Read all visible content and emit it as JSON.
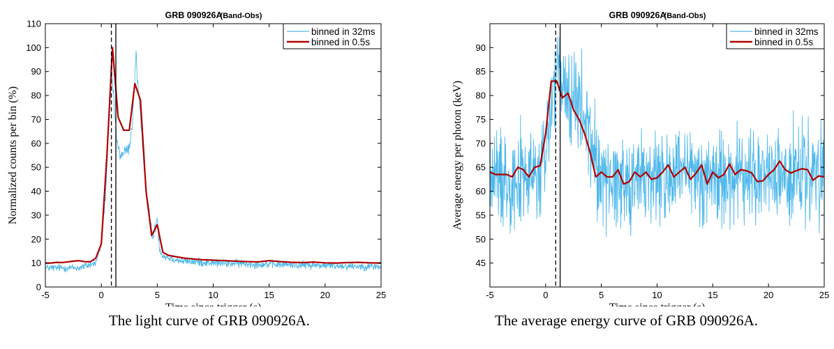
{
  "chart_data": [
    {
      "type": "line",
      "title": "GRB 090926A",
      "subtitle": "(Band-Obs)",
      "xlabel": "Time since trigger (s)",
      "ylabel": "Normalized counts per bin (%)",
      "xlim": [
        -5,
        25
      ],
      "ylim": [
        0,
        110
      ],
      "xticks": [
        -5,
        0,
        5,
        10,
        15,
        20,
        25
      ],
      "yticks": [
        0,
        10,
        20,
        30,
        40,
        50,
        60,
        70,
        80,
        90,
        100,
        110
      ],
      "grid": false,
      "legend_position": "top-right",
      "vlines": [
        {
          "x": 0.9,
          "style": "dashed"
        },
        {
          "x": 1.3,
          "style": "solid"
        }
      ],
      "series": [
        {
          "name": "binned in 32ms",
          "color": "#4fb8ea",
          "noise_amplitude": 1.5,
          "x": [
            -5,
            -2,
            -0.5,
            0.0,
            0.4,
            0.7,
            0.9,
            1.0,
            1.2,
            1.4,
            1.7,
            2.0,
            2.5,
            2.8,
            3.0,
            3.1,
            3.2,
            3.5,
            4.0,
            4.3,
            4.6,
            5.0,
            5.2,
            5.5,
            7,
            10,
            15,
            20,
            25
          ],
          "values": [
            8,
            8,
            10,
            18,
            40,
            72,
            96,
            85,
            72,
            60,
            55,
            56,
            58,
            70,
            88,
            100,
            88,
            70,
            42,
            30,
            20,
            29,
            16,
            13,
            11,
            10,
            9.5,
            9,
            8.5
          ]
        },
        {
          "name": "binned in 0.5s",
          "color": "#b00000",
          "x": [
            -5,
            -4.5,
            -4,
            -3.5,
            -3,
            -2.5,
            -2,
            -1.5,
            -1,
            -0.5,
            0,
            0.5,
            1.0,
            1.5,
            2.0,
            2.5,
            3.0,
            3.5,
            4.0,
            4.5,
            5.0,
            5.5,
            6,
            6.5,
            7,
            7.5,
            8,
            9,
            10,
            11,
            12,
            13,
            14,
            15,
            16,
            17,
            18,
            19,
            20,
            21,
            22,
            23,
            24,
            25
          ],
          "values": [
            10,
            10,
            10.3,
            10.2,
            10.5,
            10.8,
            11,
            10.6,
            10.5,
            12,
            18,
            55,
            100,
            71,
            65.5,
            65.5,
            85,
            78,
            40,
            21.5,
            26,
            14.5,
            13.2,
            12.8,
            12.4,
            12,
            11.8,
            11.4,
            11.2,
            11,
            10.8,
            10.6,
            10.5,
            11,
            10.6,
            10.3,
            10.2,
            10.4,
            10.1,
            10,
            10.2,
            10.3,
            10.1,
            10
          ]
        }
      ]
    },
    {
      "type": "line",
      "title": "GRB 090926A",
      "subtitle": "(Band-Obs)",
      "xlabel": "Time since trigger (s)",
      "ylabel": "Average energy per photon (keV)",
      "xlim": [
        -5,
        25
      ],
      "ylim": [
        40,
        95
      ],
      "xticks": [
        -5,
        0,
        5,
        10,
        15,
        20,
        25
      ],
      "yticks": [
        45,
        50,
        55,
        60,
        65,
        70,
        75,
        80,
        85,
        90
      ],
      "grid": false,
      "legend_position": "top-right",
      "vlines": [
        {
          "x": 0.9,
          "style": "dashed"
        },
        {
          "x": 1.3,
          "style": "solid"
        }
      ],
      "series": [
        {
          "name": "binned in 32ms",
          "color": "#4fb8ea",
          "noise_amplitude": 5.5,
          "x": [
            -5,
            -2,
            -0.5,
            0.0,
            0.4,
            0.8,
            1.0,
            1.5,
            2.0,
            2.5,
            3.0,
            3.5,
            4.0,
            4.5,
            5.0,
            6,
            8,
            10,
            15,
            20,
            25
          ],
          "values": [
            63,
            63,
            63,
            68,
            76,
            83,
            84,
            81,
            80,
            79,
            77,
            75,
            71,
            66,
            63,
            62.5,
            62.5,
            63,
            63,
            63,
            63
          ]
        },
        {
          "name": "binned in 0.5s",
          "color": "#b00000",
          "x": [
            -5,
            -4.5,
            -4,
            -3.5,
            -3,
            -2.5,
            -2,
            -1.5,
            -1,
            -0.5,
            0,
            0.5,
            1.0,
            1.5,
            2.0,
            2.5,
            3.0,
            3.5,
            4.0,
            4.5,
            5.0,
            5.5,
            6,
            6.5,
            7,
            7.5,
            8,
            8.5,
            9,
            9.5,
            10,
            10.5,
            11,
            11.5,
            12,
            12.5,
            13,
            13.5,
            14,
            14.5,
            15,
            15.5,
            16,
            16.5,
            17,
            17.5,
            18,
            18.5,
            19,
            19.5,
            20,
            20.5,
            21,
            21.5,
            22,
            22.5,
            23,
            23.5,
            24,
            24.5,
            25
          ],
          "values": [
            64,
            63.5,
            63.5,
            63.5,
            63,
            65,
            64.5,
            63,
            65,
            65.3,
            72,
            83,
            83,
            79.5,
            80.5,
            77,
            75,
            72,
            68,
            63,
            64,
            63,
            63,
            64.5,
            61.5,
            62,
            64,
            63,
            64,
            62.5,
            62.8,
            64,
            65.5,
            63,
            64,
            65,
            62.5,
            63.8,
            65.5,
            61.5,
            64,
            62.8,
            63.5,
            65.7,
            63.5,
            64.5,
            64.3,
            63.8,
            62,
            62.2,
            63.5,
            64.5,
            66.3,
            64.5,
            63.8,
            64.3,
            64.7,
            64.5,
            62.3,
            63.2,
            63
          ]
        }
      ]
    }
  ],
  "captions": {
    "left": "The light curve of GRB 090926A.",
    "right": "The average energy curve of GRB 090926A."
  }
}
